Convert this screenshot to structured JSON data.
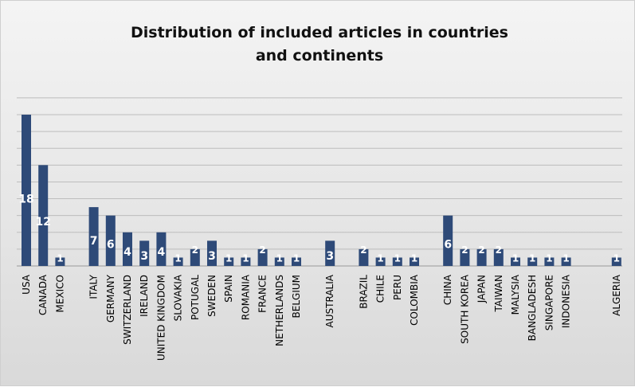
{
  "chart_data": {
    "type": "bar",
    "title_lines": [
      "Distribution of included articles in countries",
      "and continents"
    ],
    "categories": [
      "USA",
      "CANADA",
      "MEXICO",
      "ITALY",
      "GERMANY",
      "SWITZERLAND",
      "IRELAND",
      "UNITED KINGDOM",
      "SLOVAKIA",
      "POTUGAL",
      "SWEDEN",
      "SPAIN",
      "ROMANIA",
      "FRANCE",
      "NETHERLANDS",
      "BELGIUM",
      "AUSTRALIA",
      "BRAZIL",
      "CHILE",
      "PERU",
      "COLOMBIA",
      "CHINA",
      "SOUTH KOREA",
      "JAPAN",
      "TAIWAN",
      "MALYSIA",
      "BANGLADESH",
      "SINGAPORE",
      "INDONESIA",
      "ALGERIA"
    ],
    "values": [
      18,
      12,
      1,
      7,
      6,
      4,
      3,
      4,
      1,
      2,
      3,
      1,
      1,
      2,
      1,
      1,
      3,
      2,
      1,
      1,
      1,
      6,
      2,
      2,
      2,
      1,
      1,
      1,
      1,
      1
    ],
    "groups": [
      [
        "USA",
        "CANADA",
        "MEXICO"
      ],
      [
        "ITALY",
        "GERMANY",
        "SWITZERLAND",
        "IRELAND",
        "UNITED KINGDOM",
        "SLOVAKIA",
        "POTUGAL",
        "SWEDEN",
        "SPAIN",
        "ROMANIA",
        "FRANCE",
        "NETHERLANDS",
        "BELGIUM"
      ],
      [
        "AUSTRALIA"
      ],
      [
        "BRAZIL",
        "CHILE",
        "PERU",
        "COLOMBIA"
      ],
      [
        "CHINA",
        "SOUTH KOREA",
        "JAPAN",
        "TAIWAN",
        "MALYSIA",
        "BANGLADESH",
        "SINGAPORE",
        "INDONESIA"
      ],
      [
        "ALGERIA"
      ]
    ],
    "xlabel": "",
    "ylabel": "",
    "ylim": [
      0,
      18
    ],
    "grid": true,
    "legend": "none",
    "bar_color": "#2e4a78",
    "label_color": "#ffffff"
  }
}
